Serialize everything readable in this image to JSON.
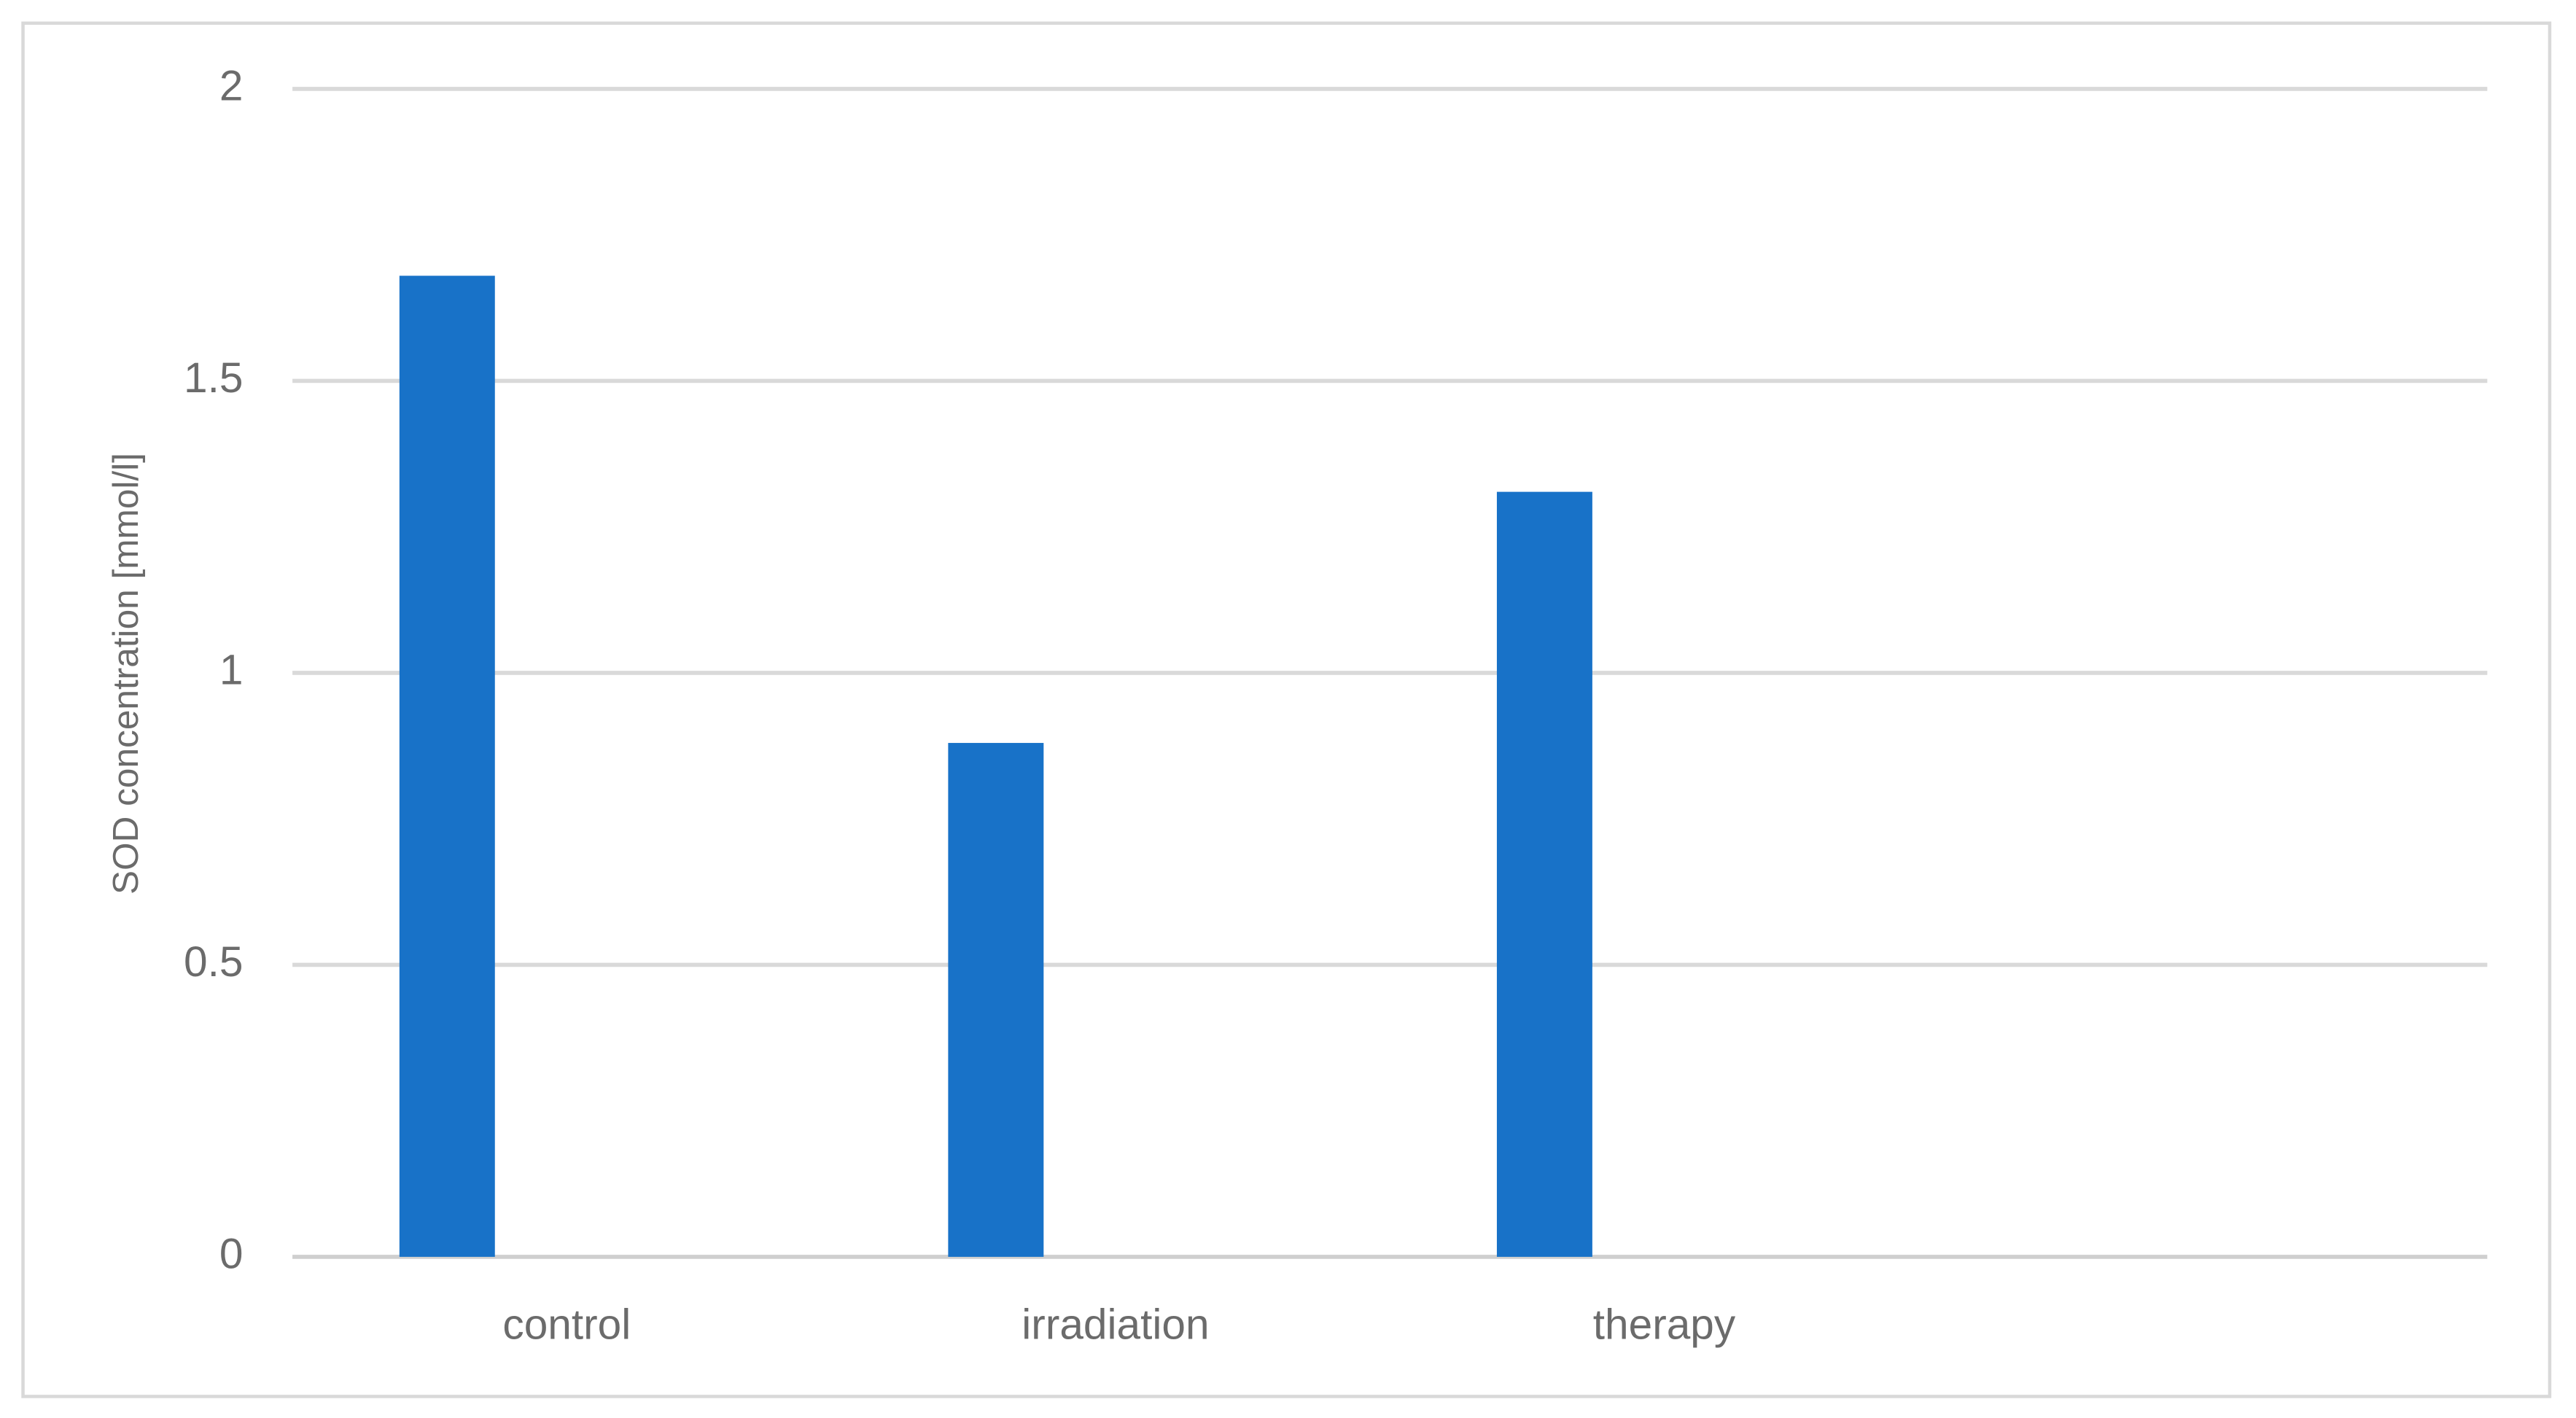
{
  "chart_data": {
    "type": "bar",
    "y_label": "SOD concentration [mmol/l]",
    "categories": [
      "control",
      "irradiation",
      "therapy",
      null
    ],
    "values": [
      1.68,
      0.88,
      1.31,
      null
    ],
    "color": "#1872c8",
    "ylim": [
      0,
      2
    ],
    "yticks": [
      0,
      0.5,
      1,
      1.5,
      2
    ],
    "grid": true
  }
}
